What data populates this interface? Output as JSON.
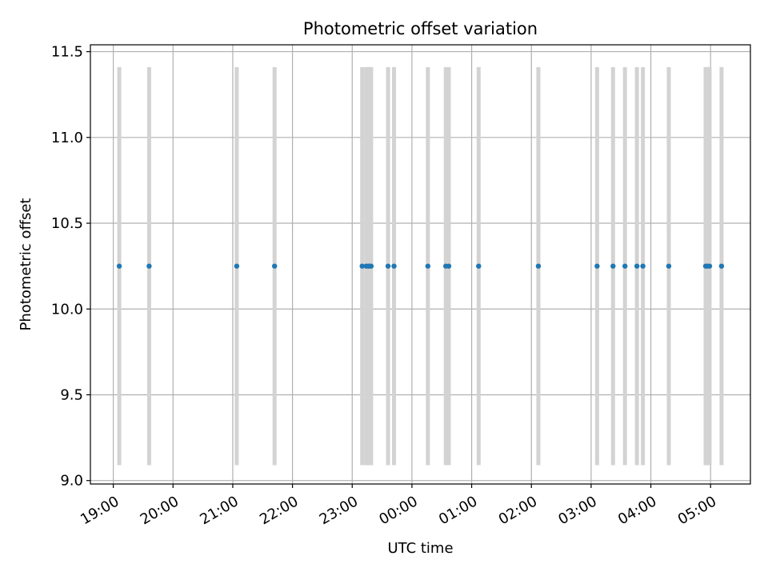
{
  "chart_data": {
    "type": "scatter",
    "title": "Photometric offset variation",
    "xlabel": "UTC time",
    "ylabel": "Photometric offset",
    "x_axis_kind": "time",
    "xlim": [
      "18:37",
      "05:40"
    ],
    "ylim": [
      8.98,
      11.54
    ],
    "grid": true,
    "x_ticks": [
      "19:00",
      "20:00",
      "21:00",
      "22:00",
      "23:00",
      "00:00",
      "01:00",
      "02:00",
      "03:00",
      "04:00",
      "05:00"
    ],
    "y_ticks": [
      9.0,
      9.5,
      10.0,
      10.5,
      11.0,
      11.5
    ],
    "error_band": {
      "low": 9.09,
      "high": 11.41,
      "color": "#d3d3d3"
    },
    "point_color": "#1f77b4",
    "series": [
      {
        "x": [
          "19:06",
          "19:36",
          "21:04",
          "21:42",
          "23:10",
          "23:14",
          "23:16",
          "23:17",
          "23:19",
          "23:36",
          "23:42",
          "00:16",
          "00:34",
          "00:37",
          "01:07",
          "02:07",
          "03:06",
          "03:22",
          "03:34",
          "03:46",
          "03:52",
          "04:18",
          "04:55",
          "04:57",
          "04:59",
          "05:11"
        ],
        "y": [
          10.25,
          10.25,
          10.25,
          10.25,
          10.25,
          10.25,
          10.25,
          10.25,
          10.25,
          10.25,
          10.25,
          10.25,
          10.25,
          10.25,
          10.25,
          10.25,
          10.25,
          10.25,
          10.25,
          10.25,
          10.25,
          10.25,
          10.25,
          10.25,
          10.25,
          10.25
        ]
      }
    ]
  }
}
